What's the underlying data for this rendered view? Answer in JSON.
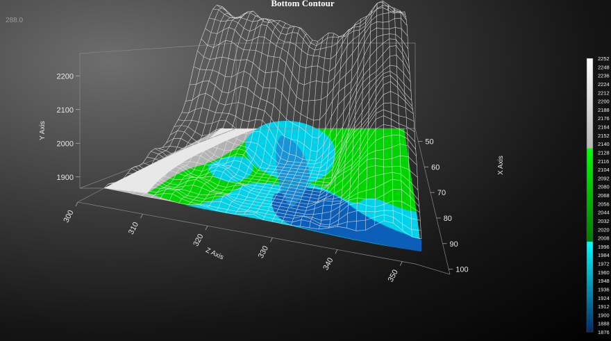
{
  "title": "Bottom Contour",
  "readout": "288.0",
  "chart_data": {
    "type": "surface",
    "title": "Bottom Contour",
    "axes": {
      "y": {
        "label": "Y Axis",
        "ticks": [
          "1900",
          "2000",
          "2100",
          "2200"
        ],
        "range": [
          1850,
          2250
        ]
      },
      "z": {
        "label": "Z Axis",
        "ticks": [
          "300",
          "310",
          "320",
          "330",
          "340",
          "350"
        ],
        "range": [
          300,
          352
        ]
      },
      "x": {
        "label": "X Axis",
        "ticks": [
          "50",
          "60",
          "70",
          "80",
          "90",
          "100"
        ],
        "range": [
          45,
          102
        ]
      }
    },
    "colorscale": {
      "labels": [
        "2252",
        "2248",
        "2236",
        "2224",
        "2212",
        "2200",
        "2188",
        "2176",
        "2164",
        "2152",
        "2140",
        "2128",
        "2116",
        "2104",
        "2092",
        "2080",
        "2068",
        "2056",
        "2044",
        "2032",
        "2020",
        "2008",
        "1996",
        "1984",
        "1972",
        "1960",
        "1948",
        "1936",
        "1924",
        "1912",
        "1900",
        "1888",
        "1876"
      ],
      "bands": [
        {
          "from": 2128,
          "to": 2252,
          "color": "#f0f0f0"
        },
        {
          "from": 2000,
          "to": 2128,
          "color": "#00e000"
        },
        {
          "from": 1876,
          "to": 2000,
          "color": "#00d8f0"
        }
      ]
    },
    "grid": true,
    "legend_position": "right"
  }
}
